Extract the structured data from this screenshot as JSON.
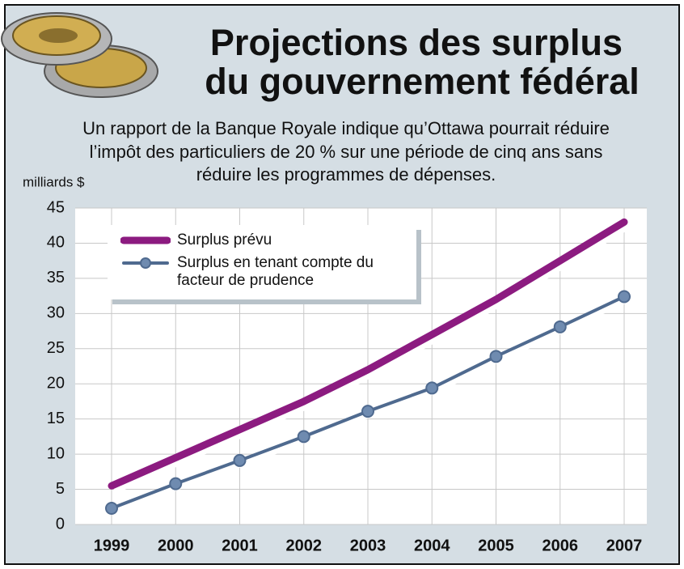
{
  "chart_data": {
    "type": "line",
    "title": [
      "Projections des surplus",
      "du gouvernement fédéral"
    ],
    "subtitle": [
      "Un rapport de la Banque Royale indique qu’Ottawa pourrait réduire",
      "l’impôt des particuliers de 20 % sur une période de cinq ans sans",
      "réduire les programmes de dépenses."
    ],
    "y_label": "milliards $",
    "categories": [
      "1999",
      "2000",
      "2001",
      "2002",
      "2003",
      "2004",
      "2005",
      "2006",
      "2007"
    ],
    "series": [
      {
        "name": "Surplus prévu",
        "color": "#8c1b80",
        "values": [
          5.5,
          9.5,
          13.5,
          17.5,
          22,
          27,
          32,
          37.5,
          43
        ]
      },
      {
        "name": "Surplus en tenant compte du facteur de prudence",
        "color": "#4f6a8f",
        "values": [
          2.3,
          5.8,
          9.1,
          12.5,
          16.1,
          19.4,
          23.9,
          28.1,
          32.4
        ]
      }
    ],
    "ylim": [
      0,
      45
    ],
    "yticks": [
      0,
      5,
      10,
      15,
      20,
      25,
      30,
      35,
      40,
      45
    ],
    "grid": true
  }
}
